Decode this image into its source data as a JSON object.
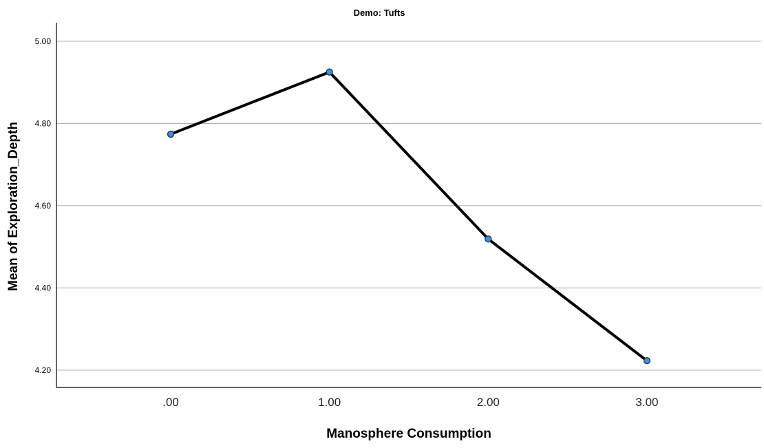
{
  "chart_data": {
    "type": "line",
    "title": "Demo: Tufts",
    "xlabel": "Manosphere Consumption",
    "ylabel": "Mean of Exploration_Depth",
    "categories": [
      ".00",
      "1.00",
      "2.00",
      "3.00"
    ],
    "x": [
      0,
      1,
      2,
      3
    ],
    "series": [
      {
        "values": [
          4.774,
          4.925,
          4.519,
          4.223
        ]
      }
    ],
    "yticks": [
      "4.20",
      "4.40",
      "4.60",
      "4.80",
      "5.00"
    ],
    "ylim": [
      4.158,
      5.045
    ],
    "xlim": [
      -0.72,
      3.72
    ],
    "grid": "horizontal",
    "colors": {
      "line": "#000000",
      "marker_fill": "#3d8fd8",
      "marker_stroke": "#1f3550",
      "grid": "#a6a6a6",
      "axis": "#000000"
    }
  }
}
